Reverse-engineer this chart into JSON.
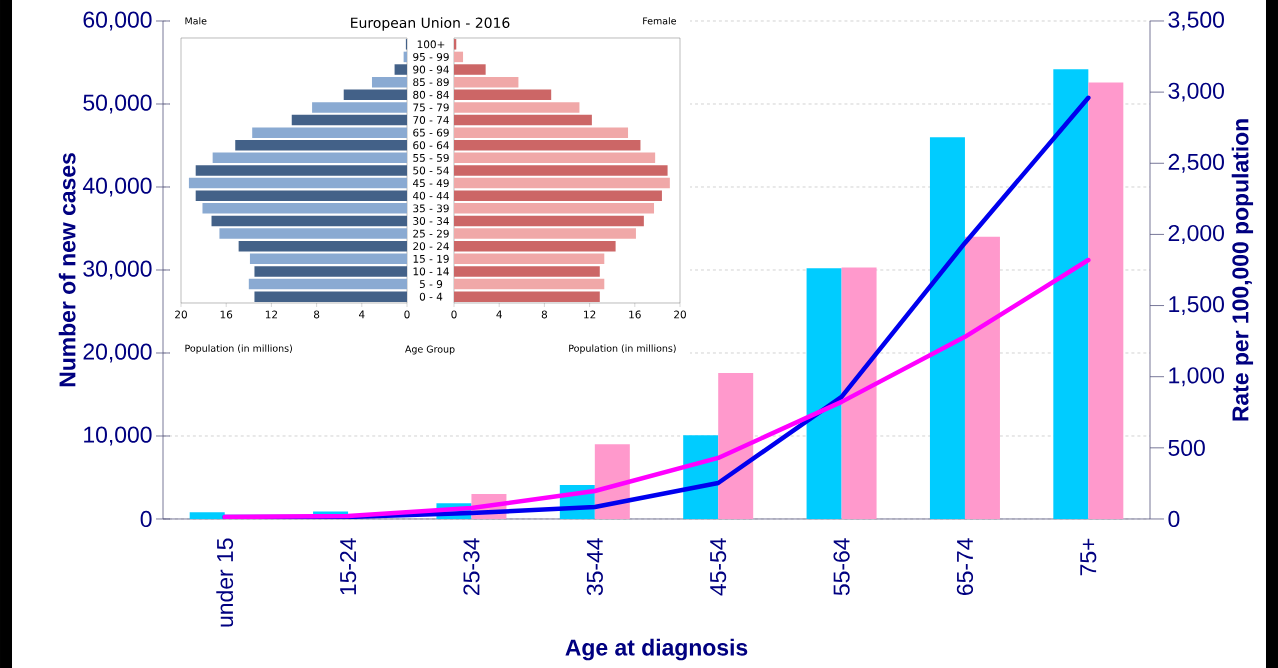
{
  "chart_data": [
    {
      "type": "bar",
      "xlabel": "Age at diagnosis",
      "ylabel": "Number of new cases",
      "y2label": "Rate per 100,000 population",
      "categories": [
        "under 15",
        "15-24",
        "25-34",
        "35-44",
        "45-54",
        "55-64",
        "65-74",
        "75+"
      ],
      "series": [
        {
          "color": "#00ccff",
          "values": [
            800,
            900,
            1900,
            4100,
            10100,
            30200,
            46000,
            54200
          ]
        },
        {
          "color": "#ff99cc",
          "values": [
            null,
            null,
            3000,
            9000,
            17600,
            30300,
            34000,
            52600
          ]
        },
        {
          "type": "line",
          "axis": "y2",
          "color": "#0000ee",
          "values": [
            14,
            14,
            42,
            84,
            253,
            858,
            1940,
            2960
          ]
        },
        {
          "type": "line",
          "axis": "y2",
          "color": "#ff00ff",
          "values": [
            14,
            21,
            77,
            197,
            429,
            823,
            1280,
            1820
          ]
        }
      ],
      "ylim": [
        0,
        60000
      ],
      "yticks": [
        0,
        {
          "value": 10000,
          "label": "10,000"
        },
        {
          "value": 20000,
          "label": "20,000"
        },
        {
          "value": 30000,
          "label": "30,000"
        },
        {
          "value": 40000,
          "label": "40,000"
        },
        {
          "value": 50000,
          "label": "50,000"
        },
        {
          "value": 60000,
          "label": "60,000"
        }
      ],
      "y2lim": [
        0,
        3500
      ],
      "y2ticks": [
        0,
        500,
        {
          "value": 1000,
          "label": "1,000"
        },
        {
          "value": 1500,
          "label": "1,500"
        },
        {
          "value": 2000,
          "label": "2,000"
        },
        {
          "value": 2500,
          "label": "2,500"
        },
        {
          "value": 3000,
          "label": "3,000"
        },
        {
          "value": 3500,
          "label": "3,500"
        }
      ],
      "grid": "y"
    },
    {
      "type": "bar",
      "orientation": "horizontal",
      "title": "Male",
      "xlabel": "Population (in millions)",
      "annotations": [
        "European Union - 2016",
        "Age Group"
      ],
      "categories": [
        "100+",
        "95 - 99",
        "90 - 94",
        "85 - 89",
        "80 - 84",
        "75 - 79",
        "70 - 74",
        "65 - 69",
        "60 - 64",
        "55 - 59",
        "50 - 54",
        "45 - 49",
        "40 - 44",
        "35 - 39",
        "30 - 34",
        "25 - 29",
        "20 - 24",
        "15 - 19",
        "10 - 14",
        "5 - 9",
        "0 - 4"
      ],
      "values": [
        0.1,
        0.3,
        1.1,
        3.1,
        5.6,
        8.4,
        10.2,
        13.7,
        15.2,
        17.2,
        18.7,
        19.3,
        18.7,
        18.1,
        17.3,
        16.6,
        14.9,
        13.9,
        13.5,
        14.0,
        13.5
      ],
      "colors": [
        "#436188",
        "#8aaad2",
        "#436188",
        "#8aaad2",
        "#436188",
        "#8aaad2",
        "#436188",
        "#8aaad2",
        "#436188",
        "#8aaad2",
        "#436188",
        "#8aaad2",
        "#436188",
        "#8aaad2",
        "#436188",
        "#8aaad2",
        "#436188",
        "#8aaad2",
        "#436188",
        "#8aaad2",
        "#436188"
      ],
      "xlim": [
        20,
        0
      ],
      "xticks": [
        20,
        16,
        12,
        8,
        4,
        0
      ]
    },
    {
      "type": "bar",
      "orientation": "horizontal",
      "title": "Female",
      "xlabel": "Population (in millions)",
      "values": [
        0.2,
        0.8,
        2.8,
        5.7,
        8.6,
        11.1,
        12.2,
        15.4,
        16.5,
        17.8,
        18.9,
        19.1,
        18.4,
        17.7,
        16.8,
        16.1,
        14.3,
        13.3,
        12.9,
        13.3,
        12.9
      ],
      "colors": [
        "#cc6666",
        "#f0a8a8",
        "#cc6666",
        "#f0a8a8",
        "#cc6666",
        "#f0a8a8",
        "#cc6666",
        "#f0a8a8",
        "#cc6666",
        "#f0a8a8",
        "#cc6666",
        "#f0a8a8",
        "#cc6666",
        "#f0a8a8",
        "#cc6666",
        "#f0a8a8",
        "#cc6666",
        "#f0a8a8",
        "#cc6666",
        "#f0a8a8",
        "#cc6666"
      ],
      "xlim": [
        0,
        20
      ],
      "xticks": [
        0,
        4,
        8,
        12,
        16,
        20
      ],
      "tick_labels": "x"
    }
  ]
}
